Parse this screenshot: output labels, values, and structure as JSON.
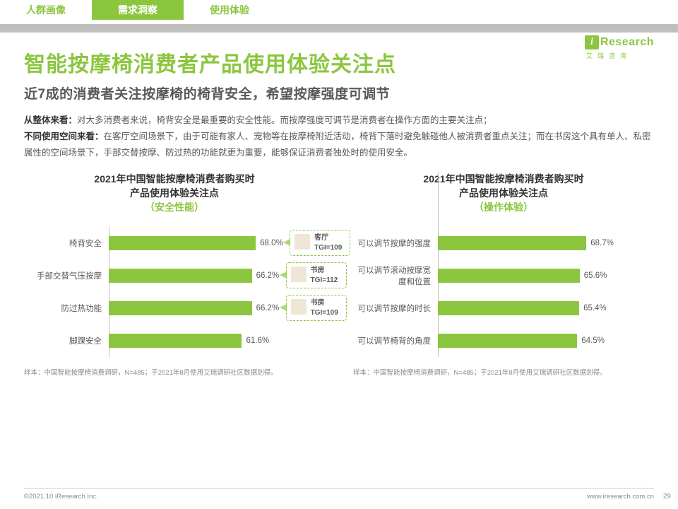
{
  "tabs": [
    "人群画像",
    "需求洞察",
    "使用体验"
  ],
  "active_tab": 1,
  "logo": {
    "brand": "Research",
    "sub": "艾瑞咨询"
  },
  "title": "智能按摩椅消费者产品使用体验关注点",
  "subtitle": "近7成的消费者关注按摩椅的椅背安全，希望按摩强度可调节",
  "body": {
    "p1_bold": "从整体来看：",
    "p1": "对大多消费者来说，椅背安全是最重要的安全性能。而按摩强度可调节是消费者在操作方面的主要关注点；",
    "p2_bold": "不同使用空间来看：",
    "p2": "在客厅空间场景下，由于可能有家人、宠物等在按摩椅附近活动，椅背下落时避免触碰他人被消费者重点关注；而在书房这个具有单人、私密属性的空间场景下，手部交替按摩、防过热的功能就更为重要，能够保证消费者独处时的使用安全。"
  },
  "chart_left": {
    "title_l1": "2021年中国智能按摩椅消费者购买时",
    "title_l2": "产品使用体验关注点",
    "title_accent": "（安全性能）",
    "type": "bar",
    "xlim": [
      0,
      100
    ],
    "bar_color": "#8cc63f",
    "label_fontsize": 11.5,
    "items": [
      {
        "label": "椅背安全",
        "value": 68.0,
        "display": "68.0%",
        "callout": {
          "place": "客厅",
          "tgi": "TGI=109"
        }
      },
      {
        "label": "手部交替气压按摩",
        "value": 66.2,
        "display": "66.2%",
        "callout": {
          "place": "书房",
          "tgi": "TGI=112"
        }
      },
      {
        "label": "防过热功能",
        "value": 66.2,
        "display": "66.2%",
        "callout": {
          "place": "书房",
          "tgi": "TGI=109"
        }
      },
      {
        "label": "脚踝安全",
        "value": 61.6,
        "display": "61.6%"
      }
    ]
  },
  "chart_right": {
    "title_l1": "2021年中国智能按摩椅消费者购买时",
    "title_l2": "产品使用体验关注点",
    "title_accent": "（操作体验）",
    "type": "bar",
    "xlim": [
      0,
      100
    ],
    "bar_color": "#8cc63f",
    "items": [
      {
        "label": "可以调节按摩的强度",
        "value": 68.7,
        "display": "68.7%"
      },
      {
        "label": "可以调节滚动按摩宽度和位置",
        "value": 65.6,
        "display": "65.6%"
      },
      {
        "label": "可以调节按摩的时长",
        "value": 65.4,
        "display": "65.4%"
      },
      {
        "label": "可以调节椅背的角度",
        "value": 64.5,
        "display": "64.5%"
      }
    ]
  },
  "source_left": "样本：中国智能按摩椅消费调研，N=485；于2021年8月使用艾瑞调研社区数据划得。",
  "source_right": "样本：中国智能按摩椅消费调研，N=485；于2021年8月使用艾瑞调研社区数据划得。",
  "footer": {
    "copyright": "©2021.10 iResearch Inc.",
    "url": "www.iresearch.com.cn"
  },
  "page": "29",
  "colors": {
    "accent": "#8cc63f",
    "text": "#595959",
    "gray": "#bfbfbf"
  }
}
